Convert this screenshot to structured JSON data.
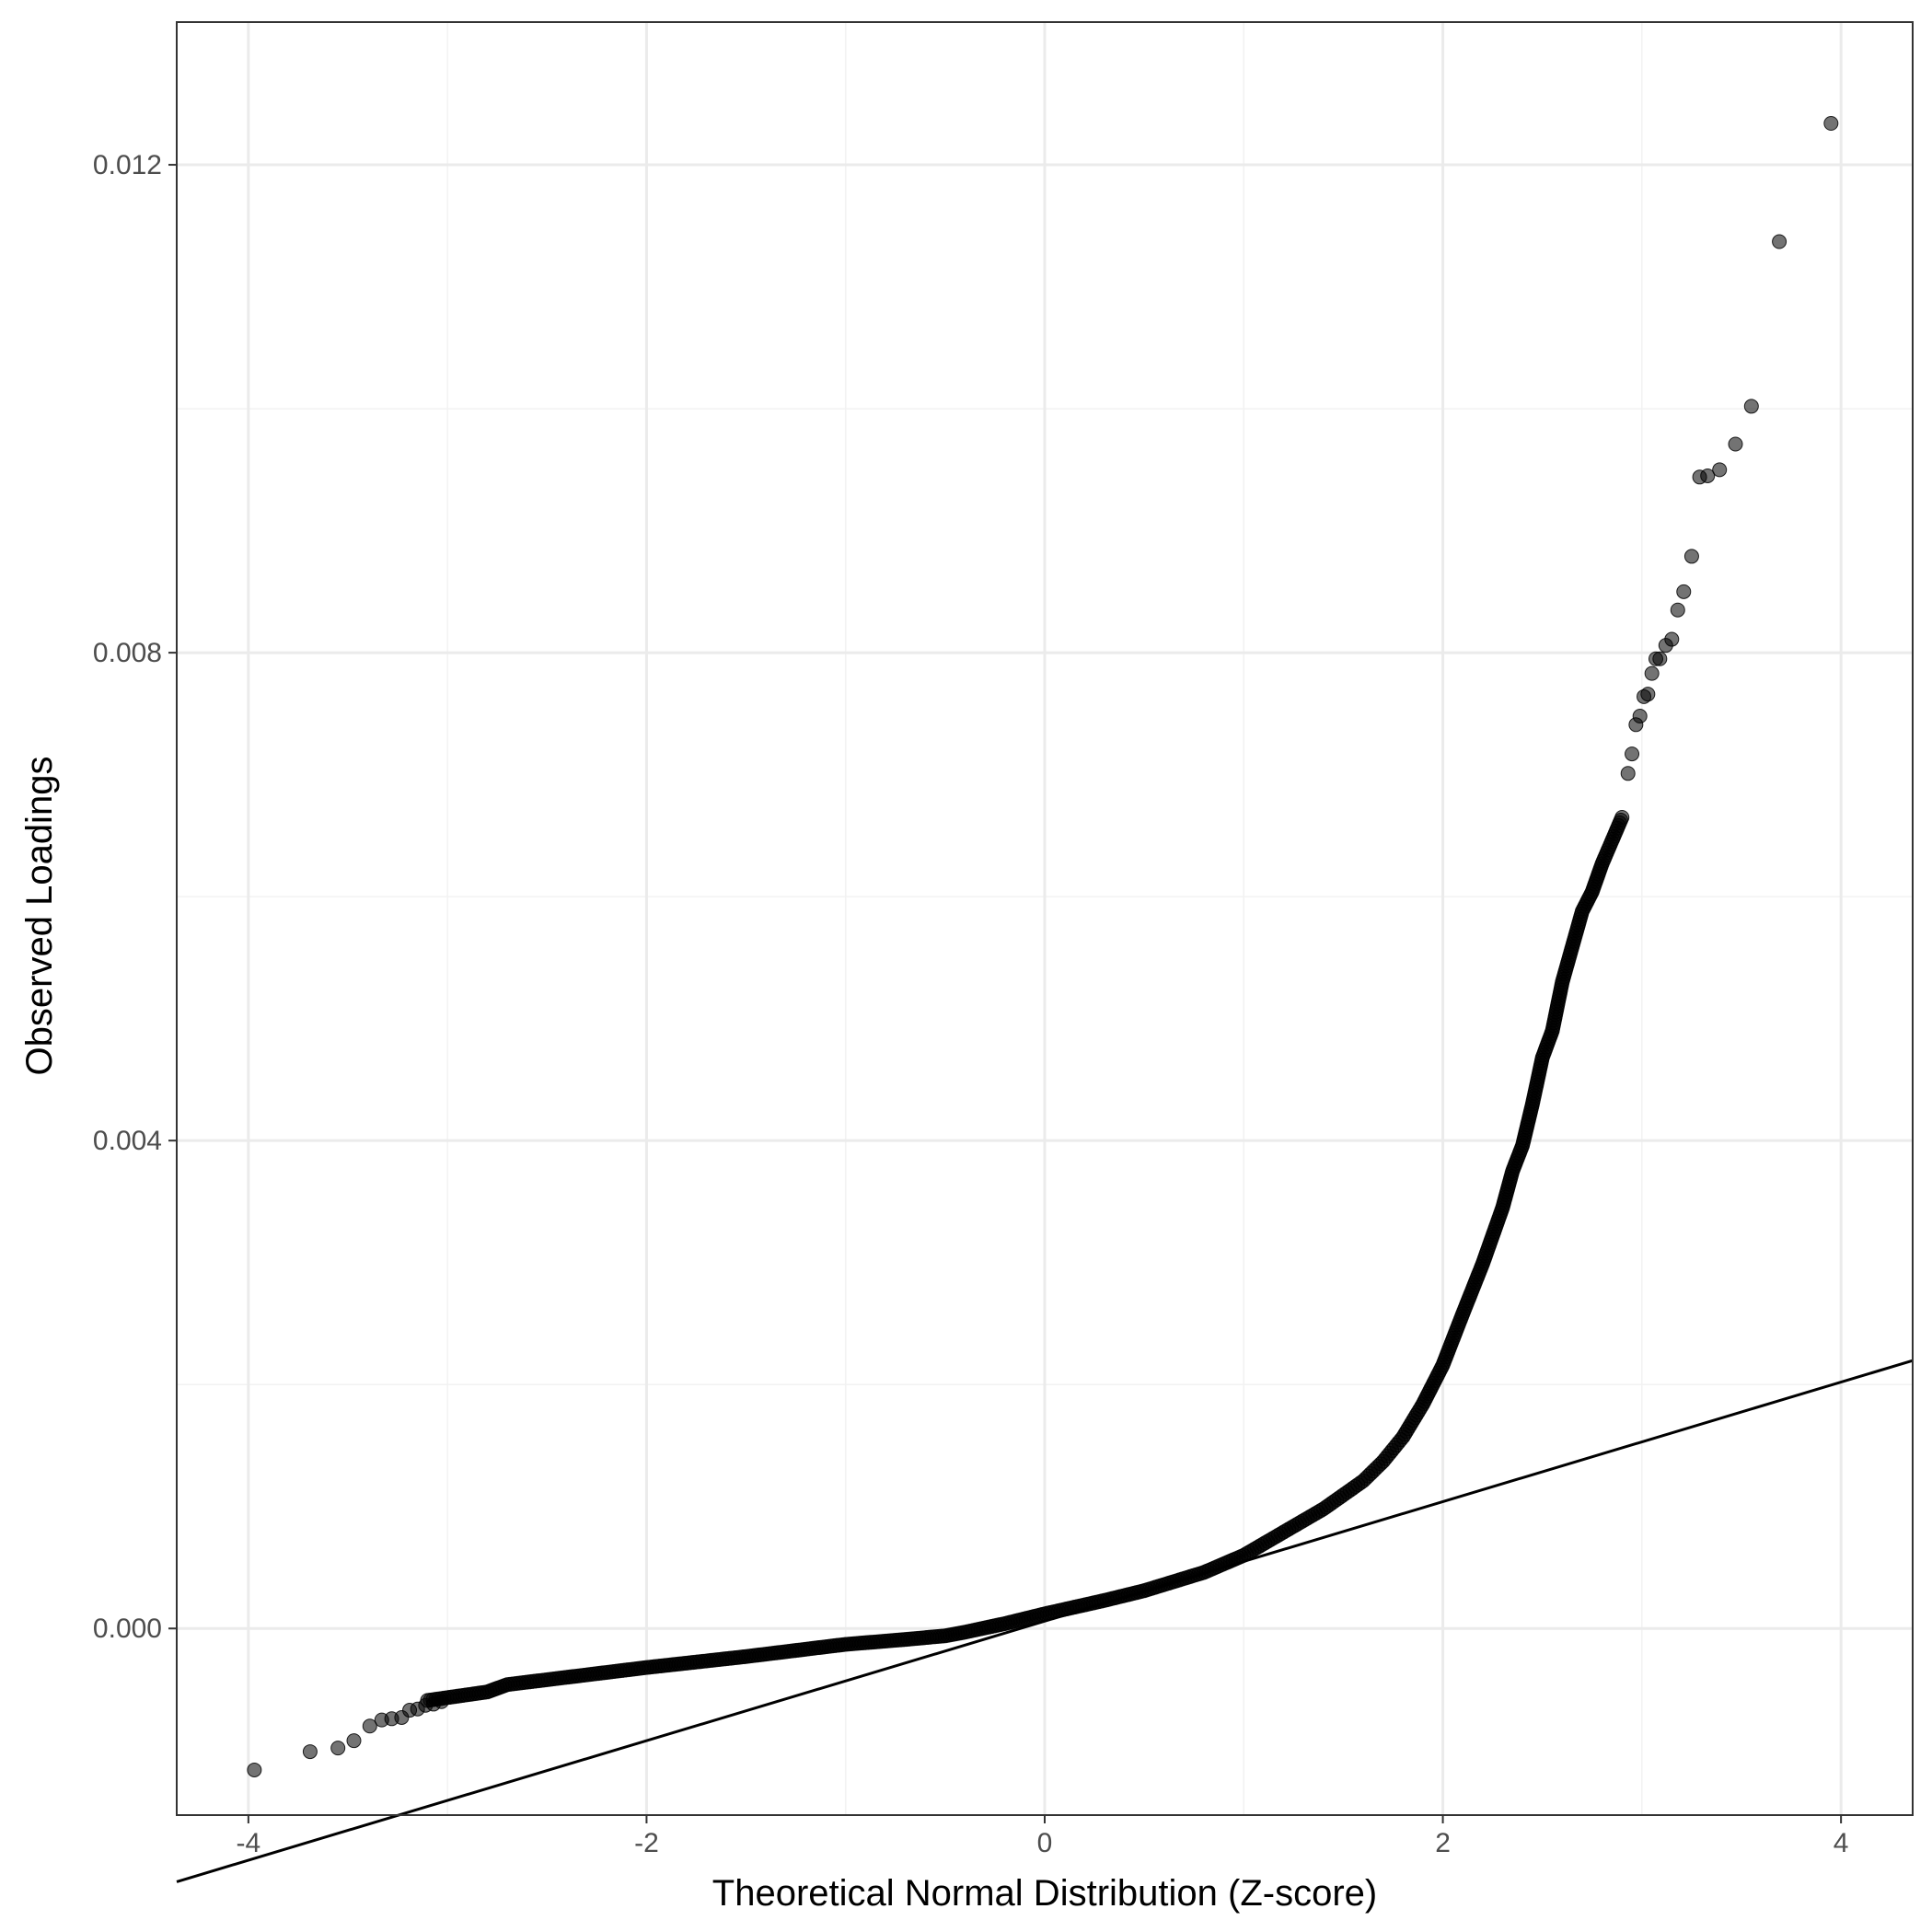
{
  "chart_data": {
    "type": "scatter",
    "title": "",
    "xlabel": "Theoretical Normal Distribution (Z-score)",
    "ylabel": "Observed Loadings",
    "xlim": [
      -4.36,
      4.36
    ],
    "ylim": [
      -0.00153,
      0.01317
    ],
    "x_ticks": [
      -4,
      -2,
      0,
      2,
      4
    ],
    "x_tick_labels": [
      "-4",
      "-2",
      "0",
      "2",
      "4"
    ],
    "y_ticks": [
      0.0,
      0.004,
      0.008,
      0.012
    ],
    "y_tick_labels": [
      "0.000",
      "0.004",
      "0.008",
      "0.012"
    ],
    "grid": true,
    "legend": "none",
    "point_color": "#000000",
    "point_opacity": 0.55,
    "reference_line": {
      "slope": 0.00049,
      "intercept": 6e-05,
      "color": "#000000"
    },
    "quantile_knots": {
      "x": [
        -3.1,
        -2.8,
        -2.7,
        -2.3,
        -2.0,
        -1.5,
        -1.0,
        -0.7,
        -0.5,
        -0.4,
        -0.2,
        0.0,
        0.3,
        0.5,
        0.8,
        1.0,
        1.2,
        1.4,
        1.6,
        1.7,
        1.8,
        1.9,
        2.0,
        2.1,
        2.2,
        2.3,
        2.35,
        2.4,
        2.45,
        2.5,
        2.55,
        2.6,
        2.7,
        2.75,
        2.8,
        2.9
      ],
      "y": [
        -0.00059,
        -0.00052,
        -0.00046,
        -0.00038,
        -0.00032,
        -0.00023,
        -0.00013,
        -9e-05,
        -6e-05,
        -3e-05,
        4e-05,
        0.00012,
        0.00023,
        0.00031,
        0.00046,
        0.0006,
        0.00079,
        0.00098,
        0.00121,
        0.00137,
        0.00157,
        0.00184,
        0.00216,
        0.00258,
        0.00299,
        0.00345,
        0.00375,
        0.00396,
        0.0043,
        0.00468,
        0.0049,
        0.0053,
        0.00588,
        0.00604,
        0.00627,
        0.00665
      ]
    },
    "points": [
      {
        "x": 3.95,
        "y": 0.01234
      },
      {
        "x": 3.69,
        "y": 0.01137
      },
      {
        "x": 3.55,
        "y": 0.01002
      },
      {
        "x": 3.47,
        "y": 0.00971
      },
      {
        "x": 3.39,
        "y": 0.0095
      },
      {
        "x": 3.33,
        "y": 0.00945
      },
      {
        "x": 3.29,
        "y": 0.00944
      },
      {
        "x": 3.25,
        "y": 0.00879
      },
      {
        "x": 3.21,
        "y": 0.0085
      },
      {
        "x": 3.18,
        "y": 0.00835
      },
      {
        "x": 3.15,
        "y": 0.00811
      },
      {
        "x": 3.12,
        "y": 0.00806
      },
      {
        "x": 3.09,
        "y": 0.00795
      },
      {
        "x": 3.07,
        "y": 0.00795
      },
      {
        "x": 3.05,
        "y": 0.00783
      },
      {
        "x": 3.03,
        "y": 0.00766
      },
      {
        "x": 3.01,
        "y": 0.00764
      },
      {
        "x": 2.99,
        "y": 0.00748
      },
      {
        "x": 2.97,
        "y": 0.00741
      },
      {
        "x": 2.95,
        "y": 0.00717
      },
      {
        "x": 2.93,
        "y": 0.00701
      },
      {
        "x": -3.97,
        "y": -0.00116
      },
      {
        "x": -3.69,
        "y": -0.00101
      },
      {
        "x": -3.55,
        "y": -0.00098
      },
      {
        "x": -3.47,
        "y": -0.00092
      },
      {
        "x": -3.39,
        "y": -0.0008
      },
      {
        "x": -3.33,
        "y": -0.00075
      },
      {
        "x": -3.28,
        "y": -0.00074
      },
      {
        "x": -3.23,
        "y": -0.00073
      },
      {
        "x": -3.19,
        "y": -0.00067
      },
      {
        "x": -3.15,
        "y": -0.00066
      },
      {
        "x": -3.11,
        "y": -0.00063
      },
      {
        "x": -3.07,
        "y": -0.00062
      },
      {
        "x": -3.03,
        "y": -0.0006
      }
    ]
  }
}
